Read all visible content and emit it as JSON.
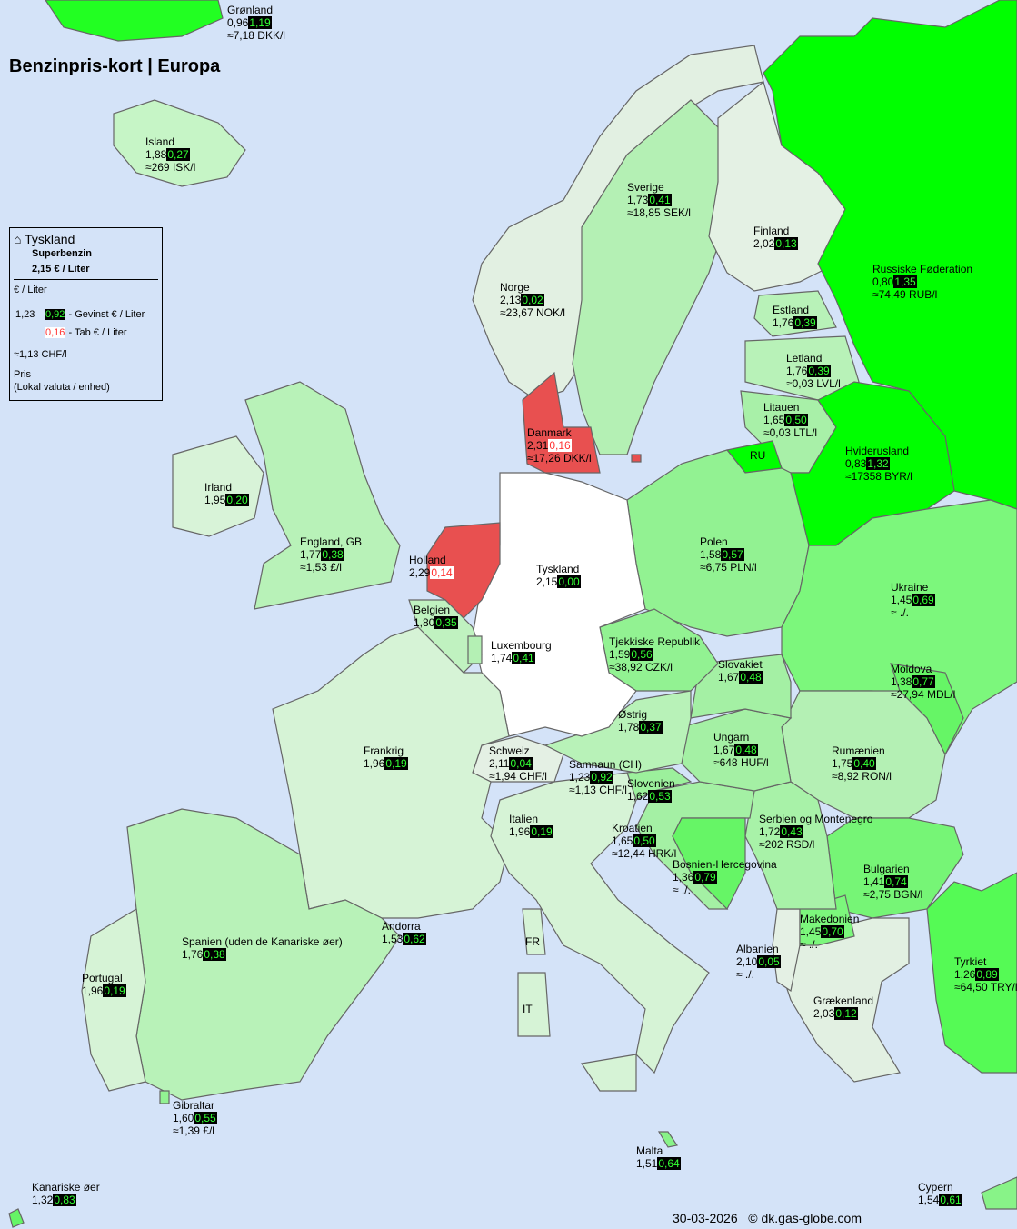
{
  "title": "Benzinpris-kort | Europa",
  "colors": {
    "sea": "#d4e3f8",
    "gain_text": "#33ff33",
    "loss_text": "#ff3333",
    "home": "#ffffff",
    "more_expensive": "#e85050"
  },
  "legend": {
    "country": "Tyskland",
    "fuel": "Superbenzin",
    "price": "2,15 € / Liter",
    "unit": "€ / Liter",
    "example_price": "1,23",
    "example_gain": "0,92",
    "gain_text": "- Gevinst € / Liter",
    "example_loss": "0,16",
    "loss_text": "- Tab € / Liter",
    "example_local": "≈1,13 CHF/l",
    "price_label": "Pris",
    "local_label": "(Lokal valuta / enhed)",
    "icon": "home-icon"
  },
  "countries": [
    {
      "name": "Grønland",
      "price": "0,96",
      "diff": "1,19",
      "type": "gain",
      "local": "≈7,18 DKK/l",
      "color": "#22ff22"
    },
    {
      "name": "Island",
      "price": "1,88",
      "diff": "0,27",
      "type": "gain",
      "local": "≈269 ISK/l",
      "color": "#c6f5c6"
    },
    {
      "name": "Sverige",
      "price": "1,73",
      "diff": "0,41",
      "type": "gain",
      "local": "≈18,85 SEK/l",
      "color": "#b4f0b4"
    },
    {
      "name": "Finland",
      "price": "2,02",
      "diff": "0,13",
      "type": "gain",
      "local": "",
      "color": "#e4f1e4"
    },
    {
      "name": "Norge",
      "price": "2,13",
      "diff": "0,02",
      "type": "gain",
      "local": "≈23,67 NOK/l",
      "color": "#e2f0e2"
    },
    {
      "name": "Russiske Føderation",
      "price": "0,80",
      "diff": "1,35",
      "type": "gain",
      "local": "≈74,49 RUB/l",
      "color": "#00ff00"
    },
    {
      "name": "Estland",
      "price": "1,76",
      "diff": "0,39",
      "type": "gain",
      "local": "",
      "color": "#b8f2b8"
    },
    {
      "name": "Letland",
      "price": "1,76",
      "diff": "0,39",
      "type": "gain",
      "local": "≈0,03 LVL/l",
      "color": "#b8f2b8"
    },
    {
      "name": "Litauen",
      "price": "1,65",
      "diff": "0,50",
      "type": "gain",
      "local": "≈0,03 LTL/l",
      "color": "#a8f0a8"
    },
    {
      "name": "RU",
      "price": "",
      "diff": "",
      "type": "",
      "local": "",
      "color": "#00ff00"
    },
    {
      "name": "Hviderusland",
      "price": "0,83",
      "diff": "1,32",
      "type": "gain",
      "local": "≈17358 BYR/l",
      "color": "#00ff00"
    },
    {
      "name": "Danmark",
      "price": "2,31",
      "diff": "0,16",
      "type": "loss",
      "local": "≈17,26 DKK/l",
      "color": "#e85050"
    },
    {
      "name": "Irland",
      "price": "1,95",
      "diff": "0,20",
      "type": "gain",
      "local": "",
      "color": "#d8f3d8"
    },
    {
      "name": "England, GB",
      "price": "1,77",
      "diff": "0,38",
      "type": "gain",
      "local": "≈1,53 £/l",
      "color": "#b8f2b8"
    },
    {
      "name": "Polen",
      "price": "1,58",
      "diff": "0,57",
      "type": "gain",
      "local": "≈6,75 PLN/l",
      "color": "#92f292"
    },
    {
      "name": "Holland",
      "price": "2,29",
      "diff": "0,14",
      "type": "loss",
      "local": "",
      "color": "#e85050"
    },
    {
      "name": "Tyskland",
      "price": "2,15",
      "diff": "0,00",
      "type": "gain",
      "local": "",
      "color": "#ffffff"
    },
    {
      "name": "Ukraine",
      "price": "1,45",
      "diff": "0,69",
      "type": "gain",
      "local": "≈ ./.",
      "color": "#7cf77c"
    },
    {
      "name": "Belgien",
      "price": "1,80",
      "diff": "0,35",
      "type": "gain",
      "local": "",
      "color": "#c0f2c0"
    },
    {
      "name": "Tjekkiske Republik",
      "price": "1,59",
      "diff": "0,56",
      "type": "gain",
      "local": "≈38,92 CZK/l",
      "color": "#92f292"
    },
    {
      "name": "Luxembourg",
      "price": "1,74",
      "diff": "0,41",
      "type": "gain",
      "local": "",
      "color": "#b4f0b4"
    },
    {
      "name": "Slovakiet",
      "price": "1,67",
      "diff": "0,48",
      "type": "gain",
      "local": "",
      "color": "#a4f0a4"
    },
    {
      "name": "Moldova",
      "price": "1,38",
      "diff": "0,77",
      "type": "gain",
      "local": "≈27,94 MDL/l",
      "color": "#66f566"
    },
    {
      "name": "Østrig",
      "price": "1,78",
      "diff": "0,37",
      "type": "gain",
      "local": "",
      "color": "#b8f2b8"
    },
    {
      "name": "Ungarn",
      "price": "1,67",
      "diff": "0,48",
      "type": "gain",
      "local": "≈648 HUF/l",
      "color": "#a4f0a4"
    },
    {
      "name": "Frankrig",
      "price": "1,96",
      "diff": "0,19",
      "type": "gain",
      "local": "",
      "color": "#d6f3d6"
    },
    {
      "name": "Schweiz",
      "price": "2,11",
      "diff": "0,04",
      "type": "gain",
      "local": "≈1,94 CHF/l",
      "color": "#e4f0e4"
    },
    {
      "name": "Rumænien",
      "price": "1,75",
      "diff": "0,40",
      "type": "gain",
      "local": "≈8,92 RON/l",
      "color": "#b4f0b4"
    },
    {
      "name": "Samnaun (CH)",
      "price": "1,23",
      "diff": "0,92",
      "type": "gain",
      "local": "≈1,13 CHF/l",
      "color": "#33ff33"
    },
    {
      "name": "Slovenien",
      "price": "1,62",
      "diff": "0,53",
      "type": "gain",
      "local": "",
      "color": "#9cf09c"
    },
    {
      "name": "Italien",
      "price": "1,96",
      "diff": "0,19",
      "type": "gain",
      "local": "",
      "color": "#d6f3d6"
    },
    {
      "name": "Serbien og Montenegro",
      "price": "1,72",
      "diff": "0,43",
      "type": "gain",
      "local": "≈202 RSD/l",
      "color": "#a8f2a8"
    },
    {
      "name": "Kroatien",
      "price": "1,65",
      "diff": "0,50",
      "type": "gain",
      "local": "≈12,44 HRK/l",
      "color": "#a4f0a4"
    },
    {
      "name": "Bosnien-Hercegovina",
      "price": "1,36",
      "diff": "0,79",
      "type": "gain",
      "local": "≈ ./.",
      "color": "#66f566"
    },
    {
      "name": "Bulgarien",
      "price": "1,41",
      "diff": "0,74",
      "type": "gain",
      "local": "≈2,75 BGN/l",
      "color": "#76f576"
    },
    {
      "name": "Makedonien",
      "price": "1,45",
      "diff": "0,70",
      "type": "gain",
      "local": "≈ ./.",
      "color": "#7cf77c"
    },
    {
      "name": "Andorra",
      "price": "1,53",
      "diff": "0,62",
      "type": "gain",
      "local": "",
      "color": "#88f388"
    },
    {
      "name": "Spanien (uden de Kanariske øer)",
      "price": "1,76",
      "diff": "0,38",
      "type": "gain",
      "local": "",
      "color": "#b8f2b8"
    },
    {
      "name": "Albanien",
      "price": "2,10",
      "diff": "0,05",
      "type": "gain",
      "local": "≈ ./.",
      "color": "#e4f0e4"
    },
    {
      "name": "Tyrkiet",
      "price": "1,26",
      "diff": "0,89",
      "type": "gain",
      "local": "≈64,50 TRY/l",
      "color": "#55fa55"
    },
    {
      "name": "Portugal",
      "price": "1,96",
      "diff": "0,19",
      "type": "gain",
      "local": "",
      "color": "#d6f3d6"
    },
    {
      "name": "Grækenland",
      "price": "2,03",
      "diff": "0,12",
      "type": "gain",
      "local": "",
      "color": "#e2f0e2"
    },
    {
      "name": "Gibraltar",
      "price": "1,60",
      "diff": "0,55",
      "type": "gain",
      "local": "≈1,39 £/l",
      "color": "#92f292"
    },
    {
      "name": "Malta",
      "price": "1,51",
      "diff": "0,64",
      "type": "gain",
      "local": "",
      "color": "#88f388"
    },
    {
      "name": "Kanariske øer",
      "price": "1,32",
      "diff": "0,83",
      "type": "gain",
      "local": "",
      "color": "#66f566"
    },
    {
      "name": "Cypern",
      "price": "1,54",
      "diff": "0,61",
      "type": "gain",
      "local": "",
      "color": "#88f388"
    }
  ],
  "islands": {
    "corsica": "FR",
    "sardinia": "IT"
  },
  "footer": {
    "date": "30-03-2026",
    "copyright": "© dk.gas-globe.com"
  }
}
